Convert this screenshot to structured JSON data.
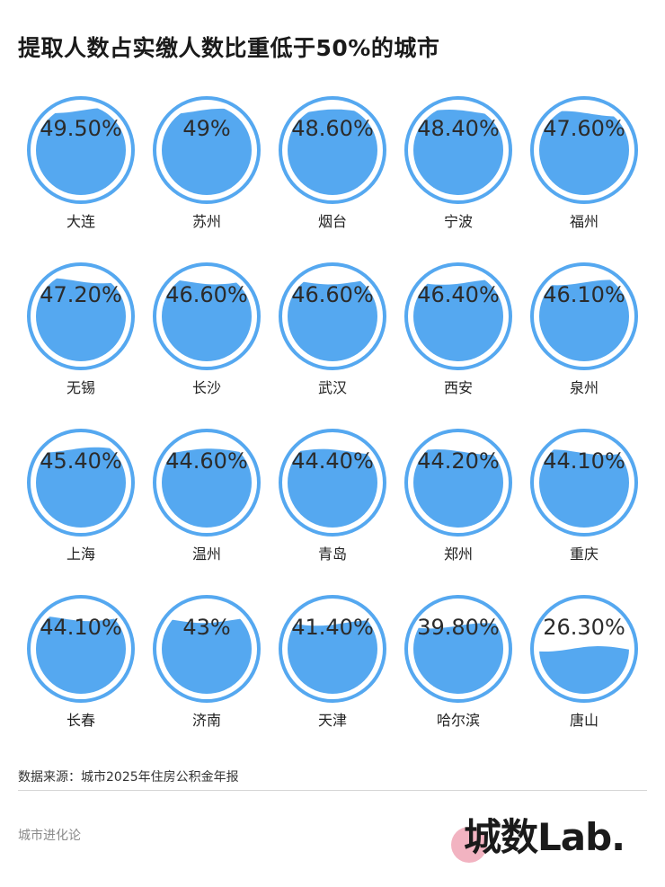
{
  "title": "提取人数占实缴人数比重低于50%的城市",
  "colors": {
    "water": "#55a8f0",
    "ring": "#55a8f0",
    "text": "#222222"
  },
  "chart_data": {
    "type": "liquid-fill",
    "title": "提取人数占实缴人数比重低于50%的城市",
    "unit": "%",
    "ylim": [
      0,
      100
    ],
    "items": [
      {
        "city": "大连",
        "label": "49.50%",
        "value": 49.5
      },
      {
        "city": "苏州",
        "label": "49%",
        "value": 49
      },
      {
        "city": "烟台",
        "label": "48.60%",
        "value": 48.6
      },
      {
        "city": "宁波",
        "label": "48.40%",
        "value": 48.4
      },
      {
        "city": "福州",
        "label": "47.60%",
        "value": 47.6
      },
      {
        "city": "无锡",
        "label": "47.20%",
        "value": 47.2
      },
      {
        "city": "长沙",
        "label": "46.60%",
        "value": 46.6
      },
      {
        "city": "武汉",
        "label": "46.60%",
        "value": 46.6
      },
      {
        "city": "西安",
        "label": "46.40%",
        "value": 46.4
      },
      {
        "city": "泉州",
        "label": "46.10%",
        "value": 46.1
      },
      {
        "city": "上海",
        "label": "45.40%",
        "value": 45.4
      },
      {
        "city": "温州",
        "label": "44.60%",
        "value": 44.6
      },
      {
        "city": "青岛",
        "label": "44.40%",
        "value": 44.4
      },
      {
        "city": "郑州",
        "label": "44.20%",
        "value": 44.2
      },
      {
        "city": "重庆",
        "label": "44.10%",
        "value": 44.1
      },
      {
        "city": "长春",
        "label": "44.10%",
        "value": 44.1
      },
      {
        "city": "济南",
        "label": "43%",
        "value": 43
      },
      {
        "city": "天津",
        "label": "41.40%",
        "value": 41.4
      },
      {
        "city": "哈尔滨",
        "label": "39.80%",
        "value": 39.8
      },
      {
        "city": "唐山",
        "label": "26.30%",
        "value": 26.3
      }
    ]
  },
  "source": "数据来源：城市2025年住房公积金年报",
  "footer": {
    "left": "城市进化论",
    "logo": "城数Lab."
  }
}
